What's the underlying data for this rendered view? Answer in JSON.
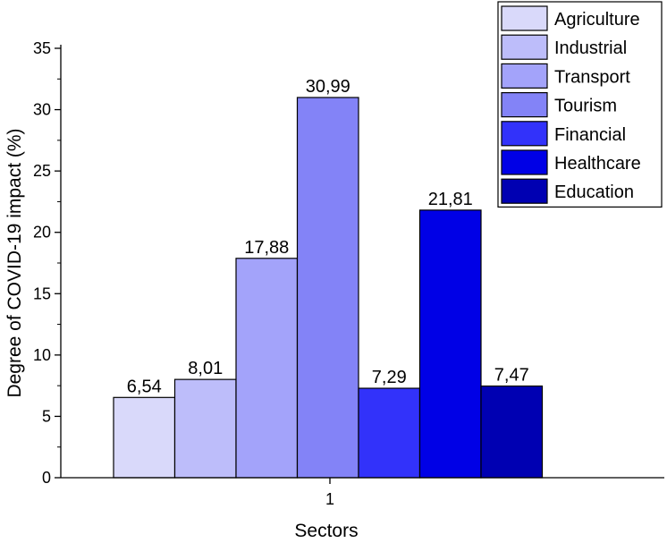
{
  "chart_data": {
    "type": "bar",
    "categories": [
      "1"
    ],
    "series": [
      {
        "name": "Agriculture",
        "values": [
          6.54
        ],
        "label": "6,54",
        "color": "#d9d9fa"
      },
      {
        "name": "Industrial",
        "values": [
          8.01
        ],
        "label": "8,01",
        "color": "#bdbdfa"
      },
      {
        "name": "Transport",
        "values": [
          17.88
        ],
        "label": "17,88",
        "color": "#a3a3fa"
      },
      {
        "name": "Tourism",
        "values": [
          30.99
        ],
        "label": "30,99",
        "color": "#8383f7"
      },
      {
        "name": "Financial",
        "values": [
          7.29
        ],
        "label": "7,29",
        "color": "#3232fa"
      },
      {
        "name": "Healthcare",
        "values": [
          21.81
        ],
        "label": "21,81",
        "color": "#0000e6"
      },
      {
        "name": "Education",
        "values": [
          7.47
        ],
        "label": "7,47",
        "color": "#0000b2"
      }
    ],
    "xlabel": "Sectors",
    "ylabel": "Degree of COVID-19 impact (%)",
    "ylim": [
      0,
      35
    ],
    "yticks": [
      "0",
      "5",
      "10",
      "15",
      "20",
      "25",
      "30",
      "35"
    ],
    "xticks": [
      "1"
    ],
    "grid": false,
    "legend_position": "top-right"
  }
}
